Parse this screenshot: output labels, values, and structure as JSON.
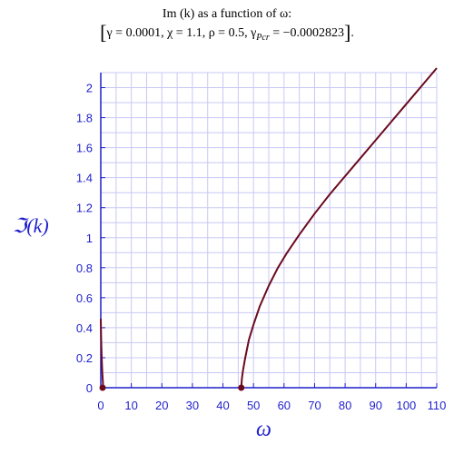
{
  "title": {
    "line1": "Im (k) as a function of ω:",
    "gamma": "γ = 0.0001",
    "chi": "χ = 1.1",
    "rho": "ρ = 0.5",
    "gamma_pcr_symbol": "γ",
    "gamma_pcr_subscript": "Pcr",
    "gamma_pcr_value": " = −0.0002823",
    "open_bracket": "[",
    "close_bracket": "]",
    "separator": ", ",
    "period": "."
  },
  "colors": {
    "axis": "#1f1fcc",
    "grid": "#c8c8f5",
    "curve": "#6b0a1e",
    "marker": "#6b0a1e"
  },
  "chart_data": {
    "type": "line",
    "xlabel": "ω",
    "ylabel": "ℑ(k)",
    "xlim": [
      0,
      110
    ],
    "ylim": [
      0,
      2.1
    ],
    "x_ticks": [
      0,
      10,
      20,
      30,
      40,
      50,
      60,
      70,
      80,
      90,
      100,
      110
    ],
    "y_ticks": [
      0,
      0.2,
      0.4,
      0.6,
      0.8,
      1,
      1.2,
      1.4,
      1.6,
      1.8,
      2
    ],
    "x_tick_labels": [
      "0",
      "10",
      "20",
      "30",
      "40",
      "50",
      "60",
      "70",
      "80",
      "90",
      "100",
      "110"
    ],
    "y_tick_labels": [
      "0",
      "0.2",
      "0.4",
      "0.6",
      "0.8",
      "1",
      "1.2",
      "1.4",
      "1.6",
      "1.8",
      "2"
    ],
    "grid": true,
    "series": [
      {
        "x": [
          0.0,
          0.05,
          0.15,
          0.3,
          0.5,
          0.8
        ],
        "y": [
          0.46,
          0.4,
          0.3,
          0.2,
          0.1,
          0.0
        ]
      },
      {
        "x": [
          46.0,
          46.2,
          46.6,
          47.3,
          48.5,
          50,
          52,
          55,
          58,
          61,
          65,
          70,
          75,
          80,
          85,
          90,
          95,
          100,
          105,
          110
        ],
        "y": [
          0.0,
          0.06,
          0.12,
          0.2,
          0.32,
          0.42,
          0.54,
          0.68,
          0.8,
          0.9,
          1.02,
          1.16,
          1.29,
          1.41,
          1.53,
          1.65,
          1.77,
          1.89,
          2.01,
          2.13
        ]
      }
    ],
    "markers": [
      {
        "x": 0.6,
        "y": 0.0
      },
      {
        "x": 46.0,
        "y": 0.0
      }
    ]
  }
}
